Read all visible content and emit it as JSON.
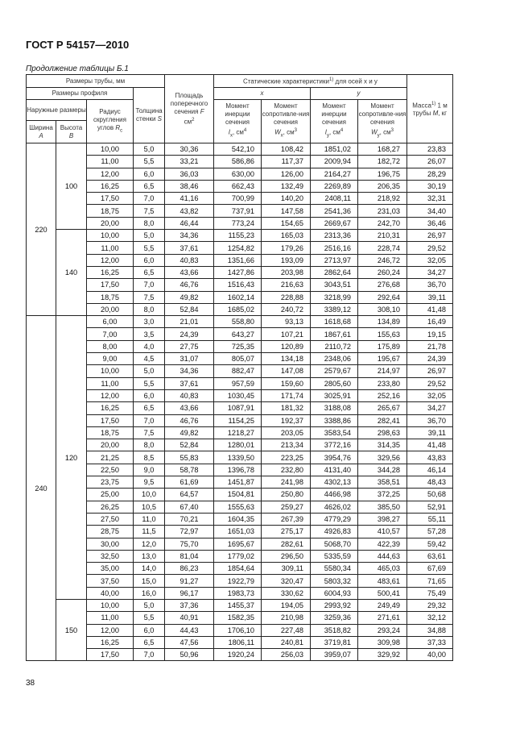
{
  "doc_id": "ГОСТ Р 54157—2010",
  "caption": "Продолжение таблицы Б.1",
  "page_number": "38",
  "header": {
    "pipe_sizes": "Размеры трубы, мм",
    "profile_sizes": "Размеры профиля",
    "outer_sizes": "Наружные размеры",
    "width": "Ширина",
    "width_sym": "A",
    "height": "Высота",
    "height_sym": "B",
    "radius": "Радиус скругления углов",
    "radius_sym": "R",
    "radius_sub": "c",
    "thickness": "Толщина стенки",
    "thickness_sym": "S",
    "area": "Площадь поперечного сечения",
    "area_sym": "F",
    "area_unit": "см",
    "static": "Статические характеристики",
    "static_sup": "1)",
    "static_tail": "для осей x и y",
    "x_axis": "x",
    "y_axis": "y",
    "moment_inertia": "Момент инерции сечения",
    "moment_resist": "Момент сопротивле-ния сечения",
    "ix": "I",
    "ix_sub": "x",
    "iy": "I",
    "iy_sub": "y",
    "wx": "W",
    "wx_sub": "x",
    "wy": "W",
    "wy_sub": "y",
    "cm4": ", см",
    "cm3": ", см",
    "mass": "Масса",
    "mass_sup": "1)",
    "mass_tail": "1 м трубы",
    "mass_sym": "M",
    "mass_unit": ", кг"
  },
  "groups": [
    {
      "A": "220",
      "subgroups": [
        {
          "B": "100",
          "rows": [
            [
              "10,00",
              "5,0",
              "30,36",
              "542,10",
              "108,42",
              "1851,02",
              "168,27",
              "23,83"
            ],
            [
              "11,00",
              "5,5",
              "33,21",
              "586,86",
              "117,37",
              "2009,94",
              "182,72",
              "26,07"
            ],
            [
              "12,00",
              "6,0",
              "36,03",
              "630,00",
              "126,00",
              "2164,27",
              "196,75",
              "28,29"
            ],
            [
              "16,25",
              "6,5",
              "38,46",
              "662,43",
              "132,49",
              "2269,89",
              "206,35",
              "30,19"
            ],
            [
              "17,50",
              "7,0",
              "41,16",
              "700,99",
              "140,20",
              "2408,11",
              "218,92",
              "32,31"
            ],
            [
              "18,75",
              "7,5",
              "43,82",
              "737,91",
              "147,58",
              "2541,36",
              "231,03",
              "34,40"
            ],
            [
              "20,00",
              "8,0",
              "46,44",
              "773,24",
              "154,65",
              "2669,67",
              "242,70",
              "36,46"
            ]
          ]
        },
        {
          "B": "140",
          "rows": [
            [
              "10,00",
              "5,0",
              "34,36",
              "1155,23",
              "165,03",
              "2313,36",
              "210,31",
              "26,97"
            ],
            [
              "11,00",
              "5,5",
              "37,61",
              "1254,82",
              "179,26",
              "2516,16",
              "228,74",
              "29,52"
            ],
            [
              "12,00",
              "6,0",
              "40,83",
              "1351,66",
              "193,09",
              "2713,97",
              "246,72",
              "32,05"
            ],
            [
              "16,25",
              "6,5",
              "43,66",
              "1427,86",
              "203,98",
              "2862,64",
              "260,24",
              "34,27"
            ],
            [
              "17,50",
              "7,0",
              "46,76",
              "1516,43",
              "216,63",
              "3043,51",
              "276,68",
              "36,70"
            ],
            [
              "18,75",
              "7,5",
              "49,82",
              "1602,14",
              "228,88",
              "3218,99",
              "292,64",
              "39,11"
            ],
            [
              "20,00",
              "8,0",
              "52,84",
              "1685,02",
              "240,72",
              "3389,12",
              "308,10",
              "41,48"
            ]
          ]
        }
      ]
    },
    {
      "A": "240",
      "subgroups": [
        {
          "B": "120",
          "rows": [
            [
              "6,00",
              "3,0",
              "21,01",
              "558,80",
              "93,13",
              "1618,68",
              "134,89",
              "16,49"
            ],
            [
              "7,00",
              "3,5",
              "24,39",
              "643,27",
              "107,21",
              "1867,61",
              "155,63",
              "19,15"
            ],
            [
              "8,00",
              "4,0",
              "27,75",
              "725,35",
              "120,89",
              "2110,72",
              "175,89",
              "21,78"
            ],
            [
              "9,00",
              "4,5",
              "31,07",
              "805,07",
              "134,18",
              "2348,06",
              "195,67",
              "24,39"
            ],
            [
              "10,00",
              "5,0",
              "34,36",
              "882,47",
              "147,08",
              "2579,67",
              "214,97",
              "26,97"
            ],
            [
              "11,00",
              "5,5",
              "37,61",
              "957,59",
              "159,60",
              "2805,60",
              "233,80",
              "29,52"
            ],
            [
              "12,00",
              "6,0",
              "40,83",
              "1030,45",
              "171,74",
              "3025,91",
              "252,16",
              "32,05"
            ],
            [
              "16,25",
              "6,5",
              "43,66",
              "1087,91",
              "181,32",
              "3188,08",
              "265,67",
              "34,27"
            ],
            [
              "17,50",
              "7,0",
              "46,76",
              "1154,25",
              "192,37",
              "3388,86",
              "282,41",
              "36,70"
            ],
            [
              "18,75",
              "7,5",
              "49,82",
              "1218,27",
              "203,05",
              "3583,54",
              "298,63",
              "39,11"
            ],
            [
              "20,00",
              "8,0",
              "52,84",
              "1280,01",
              "213,34",
              "3772,16",
              "314,35",
              "41,48"
            ],
            [
              "21,25",
              "8,5",
              "55,83",
              "1339,50",
              "223,25",
              "3954,76",
              "329,56",
              "43,83"
            ],
            [
              "22,50",
              "9,0",
              "58,78",
              "1396,78",
              "232,80",
              "4131,40",
              "344,28",
              "46,14"
            ],
            [
              "23,75",
              "9,5",
              "61,69",
              "1451,87",
              "241,98",
              "4302,13",
              "358,51",
              "48,43"
            ],
            [
              "25,00",
              "10,0",
              "64,57",
              "1504,81",
              "250,80",
              "4466,98",
              "372,25",
              "50,68"
            ],
            [
              "26,25",
              "10,5",
              "67,40",
              "1555,63",
              "259,27",
              "4626,02",
              "385,50",
              "52,91"
            ],
            [
              "27,50",
              "11,0",
              "70,21",
              "1604,35",
              "267,39",
              "4779,29",
              "398,27",
              "55,11"
            ],
            [
              "28,75",
              "11,5",
              "72,97",
              "1651,03",
              "275,17",
              "4926,83",
              "410,57",
              "57,28"
            ],
            [
              "30,00",
              "12,0",
              "75,70",
              "1695,67",
              "282,61",
              "5068,70",
              "422,39",
              "59,42"
            ],
            [
              "32,50",
              "13,0",
              "81,04",
              "1779,02",
              "296,50",
              "5335,59",
              "444,63",
              "63,61"
            ],
            [
              "35,00",
              "14,0",
              "86,23",
              "1854,64",
              "309,11",
              "5580,34",
              "465,03",
              "67,69"
            ],
            [
              "37,50",
              "15,0",
              "91,27",
              "1922,79",
              "320,47",
              "5803,32",
              "483,61",
              "71,65"
            ],
            [
              "40,00",
              "16,0",
              "96,17",
              "1983,73",
              "330,62",
              "6004,93",
              "500,41",
              "75,49"
            ]
          ]
        },
        {
          "B": "150",
          "rows": [
            [
              "10,00",
              "5,0",
              "37,36",
              "1455,37",
              "194,05",
              "2993,92",
              "249,49",
              "29,32"
            ],
            [
              "11,00",
              "5,5",
              "40,91",
              "1582,35",
              "210,98",
              "3259,36",
              "271,61",
              "32,12"
            ],
            [
              "12,00",
              "6,0",
              "44,43",
              "1706,10",
              "227,48",
              "3518,82",
              "293,24",
              "34,88"
            ],
            [
              "16,25",
              "6,5",
              "47,56",
              "1806,11",
              "240,81",
              "3719,81",
              "309,98",
              "37,33"
            ],
            [
              "17,50",
              "7,0",
              "50,96",
              "1920,24",
              "256,03",
              "3959,07",
              "329,92",
              "40,00"
            ]
          ]
        }
      ]
    }
  ]
}
